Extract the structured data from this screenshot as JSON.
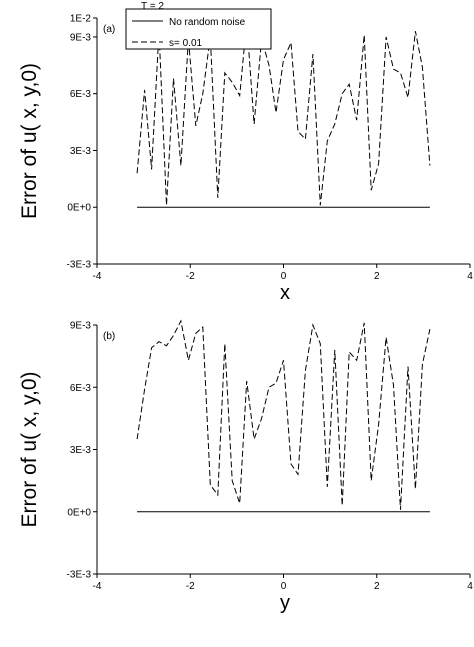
{
  "header": {
    "title": "T = 2"
  },
  "chart_data": [
    {
      "panel_label": "(a)",
      "type": "line",
      "xlabel": "x",
      "ylabel": "Error of u( x, y,0)",
      "xlim": [
        -4,
        4
      ],
      "ylim": [
        -0.003,
        0.01
      ],
      "xticks": [
        -4,
        -2,
        0,
        2,
        4
      ],
      "xtick_labels": [
        "-4",
        "-2",
        "0",
        "2",
        "4"
      ],
      "yticks": [
        -0.003,
        0,
        0.003,
        0.006,
        0.009,
        0.01
      ],
      "ytick_labels": [
        "-3E-3",
        "0E+0",
        "3E-3",
        "6E-3",
        "9E-3",
        "1E-2"
      ],
      "grid": false,
      "legend": {
        "position": "top-left",
        "border": true
      },
      "series": [
        {
          "name": "No random noise",
          "style": "solid",
          "x": [
            -3.14,
            3.14
          ],
          "y": [
            0.0,
            0.0
          ]
        },
        {
          "name": "s= 0.01",
          "style": "dashed",
          "x": [
            -3.14,
            -2.98,
            -2.83,
            -2.67,
            -2.51,
            -2.36,
            -2.2,
            -2.04,
            -1.88,
            -1.73,
            -1.57,
            -1.41,
            -1.26,
            -1.1,
            -0.94,
            -0.79,
            -0.63,
            -0.47,
            -0.31,
            -0.16,
            0.0,
            0.16,
            0.31,
            0.47,
            0.63,
            0.79,
            0.94,
            1.1,
            1.26,
            1.41,
            1.57,
            1.73,
            1.88,
            2.04,
            2.2,
            2.36,
            2.51,
            2.67,
            2.83,
            2.98,
            3.14
          ],
          "y": [
            0.0018,
            0.0062,
            0.002,
            0.0093,
            0.0001,
            0.0068,
            0.0022,
            0.0089,
            0.0043,
            0.006,
            0.009,
            0.0005,
            0.0071,
            0.0066,
            0.0059,
            0.0098,
            0.0044,
            0.0089,
            0.0075,
            0.005,
            0.0078,
            0.0087,
            0.004,
            0.0036,
            0.0081,
            0.0001,
            0.0035,
            0.0044,
            0.006,
            0.0065,
            0.0046,
            0.0091,
            0.0009,
            0.0023,
            0.009,
            0.0073,
            0.0071,
            0.0058,
            0.0093,
            0.0074,
            0.0022
          ]
        }
      ]
    },
    {
      "panel_label": "(b)",
      "type": "line",
      "xlabel": "y",
      "ylabel": "Error of u( x, y,0)",
      "xlim": [
        -4,
        4
      ],
      "ylim": [
        -0.003,
        0.009
      ],
      "xticks": [
        -4,
        -2,
        0,
        2,
        4
      ],
      "xtick_labels": [
        "-4",
        "-2",
        "0",
        "2",
        "4"
      ],
      "yticks": [
        -0.003,
        0,
        0.003,
        0.006,
        0.009
      ],
      "ytick_labels": [
        "-3E-3",
        "0E+0",
        "3E-3",
        "6E-3",
        "9E-3"
      ],
      "grid": false,
      "series": [
        {
          "name": "No random noise",
          "style": "solid",
          "x": [
            -3.14,
            3.14
          ],
          "y": [
            0.0,
            0.0
          ]
        },
        {
          "name": "s= 0.01",
          "style": "dashed",
          "x": [
            -3.14,
            -2.98,
            -2.83,
            -2.67,
            -2.51,
            -2.36,
            -2.2,
            -2.04,
            -1.88,
            -1.73,
            -1.57,
            -1.41,
            -1.26,
            -1.1,
            -0.94,
            -0.79,
            -0.63,
            -0.47,
            -0.31,
            -0.16,
            0.0,
            0.16,
            0.31,
            0.47,
            0.63,
            0.79,
            0.94,
            1.1,
            1.26,
            1.41,
            1.57,
            1.73,
            1.88,
            2.04,
            2.2,
            2.36,
            2.51,
            2.67,
            2.83,
            2.98,
            3.14
          ],
          "y": [
            0.0035,
            0.0059,
            0.0079,
            0.0082,
            0.008,
            0.0085,
            0.0092,
            0.0073,
            0.0086,
            0.0089,
            0.0013,
            0.0008,
            0.0081,
            0.0015,
            0.0004,
            0.0063,
            0.0035,
            0.0045,
            0.006,
            0.0062,
            0.0073,
            0.0023,
            0.0018,
            0.0068,
            0.009,
            0.0081,
            0.0012,
            0.0078,
            0.0003,
            0.0077,
            0.0073,
            0.0091,
            0.0015,
            0.0042,
            0.0084,
            0.0061,
            0.0001,
            0.007,
            0.0011,
            0.0071,
            0.0088
          ]
        }
      ]
    }
  ]
}
